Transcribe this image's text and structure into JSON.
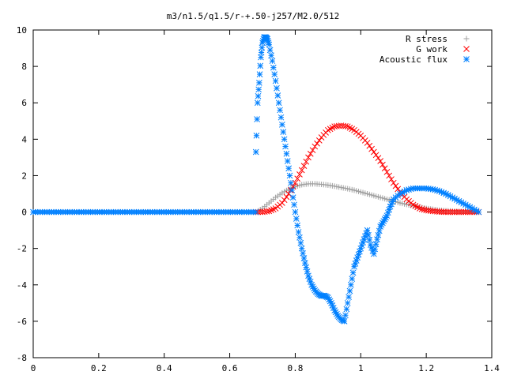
{
  "chart_data": {
    "type": "scatter",
    "title": "m3/n1.5/q1.5/r-+.50-j257/M2.0/512",
    "xlabel": "",
    "ylabel": "",
    "xlim": [
      0,
      1.4
    ],
    "ylim": [
      -8,
      10
    ],
    "x_ticks": [
      "0",
      "0.2",
      "0.4",
      "0.6",
      "0.8",
      "1",
      "1.2",
      "1.4"
    ],
    "y_ticks": [
      "-8",
      "-6",
      "-4",
      "-2",
      "0",
      "2",
      "4",
      "6",
      "8",
      "10"
    ],
    "legend_position": "top-right",
    "series": [
      {
        "name": "R stress",
        "marker": "plus",
        "color": "#a0a0a0",
        "x": [
          0.68,
          0.7,
          0.72,
          0.74,
          0.76,
          0.78,
          0.8,
          0.82,
          0.84,
          0.86,
          0.88,
          0.9,
          0.92,
          0.94,
          0.96,
          0.98,
          1.0,
          1.02,
          1.04,
          1.06,
          1.08,
          1.1,
          1.12,
          1.14,
          1.16,
          1.18,
          1.2,
          1.22,
          1.24,
          1.26,
          1.28,
          1.3,
          1.32,
          1.34,
          1.36
        ],
        "y": [
          0.0,
          0.2,
          0.5,
          0.8,
          1.05,
          1.25,
          1.4,
          1.5,
          1.55,
          1.55,
          1.52,
          1.48,
          1.42,
          1.35,
          1.28,
          1.2,
          1.1,
          1.0,
          0.9,
          0.8,
          0.7,
          0.6,
          0.5,
          0.42,
          0.34,
          0.27,
          0.2,
          0.15,
          0.1,
          0.07,
          0.05,
          0.03,
          0.02,
          0.01,
          0.0
        ]
      },
      {
        "name": "G work",
        "marker": "cross",
        "color": "#ff0000",
        "x": [
          0.68,
          0.7,
          0.72,
          0.74,
          0.76,
          0.78,
          0.8,
          0.82,
          0.84,
          0.86,
          0.88,
          0.9,
          0.92,
          0.94,
          0.96,
          0.98,
          1.0,
          1.02,
          1.04,
          1.06,
          1.08,
          1.1,
          1.12,
          1.14,
          1.16,
          1.18,
          1.2,
          1.22,
          1.24,
          1.26,
          1.28,
          1.3,
          1.32,
          1.34,
          1.36
        ],
        "y": [
          0.0,
          0.0,
          0.05,
          0.2,
          0.5,
          1.0,
          1.6,
          2.3,
          3.0,
          3.6,
          4.1,
          4.5,
          4.7,
          4.75,
          4.7,
          4.5,
          4.2,
          3.8,
          3.3,
          2.8,
          2.2,
          1.6,
          1.1,
          0.7,
          0.4,
          0.2,
          0.1,
          0.05,
          0.02,
          0.0,
          0.0,
          0.0,
          0.0,
          0.0,
          0.0
        ]
      },
      {
        "name": "Acoustic flux",
        "marker": "star",
        "color": "#0080ff",
        "x": [
          0.0,
          0.68,
          0.685,
          0.69,
          0.695,
          0.7,
          0.705,
          0.71,
          0.715,
          0.72,
          0.73,
          0.74,
          0.75,
          0.76,
          0.77,
          0.78,
          0.79,
          0.8,
          0.81,
          0.82,
          0.83,
          0.84,
          0.85,
          0.86,
          0.87,
          0.88,
          0.89,
          0.9,
          0.91,
          0.92,
          0.93,
          0.94,
          0.95,
          0.96,
          0.97,
          0.98,
          0.99,
          1.0,
          1.01,
          1.02,
          1.03,
          1.04,
          1.05,
          1.06,
          1.07,
          1.08,
          1.09,
          1.1,
          1.12,
          1.14,
          1.16,
          1.18,
          1.2,
          1.22,
          1.24,
          1.26,
          1.28,
          1.3,
          1.32,
          1.34,
          1.36
        ],
        "y": [
          0.0,
          3.3,
          6.0,
          7.1,
          8.5,
          9.3,
          9.6,
          9.6,
          9.5,
          9.2,
          8.3,
          7.2,
          6.0,
          4.8,
          3.6,
          2.4,
          1.2,
          0.0,
          -1.1,
          -2.0,
          -2.8,
          -3.5,
          -4.0,
          -4.3,
          -4.5,
          -4.6,
          -4.6,
          -4.7,
          -5.0,
          -5.4,
          -5.7,
          -5.9,
          -6.0,
          -5.0,
          -4.0,
          -3.0,
          -2.5,
          -2.0,
          -1.5,
          -1.0,
          -1.8,
          -2.3,
          -1.5,
          -0.8,
          -0.5,
          -0.2,
          0.3,
          0.7,
          1.0,
          1.2,
          1.3,
          1.3,
          1.3,
          1.25,
          1.15,
          1.0,
          0.8,
          0.6,
          0.4,
          0.2,
          0.0
        ]
      }
    ]
  }
}
